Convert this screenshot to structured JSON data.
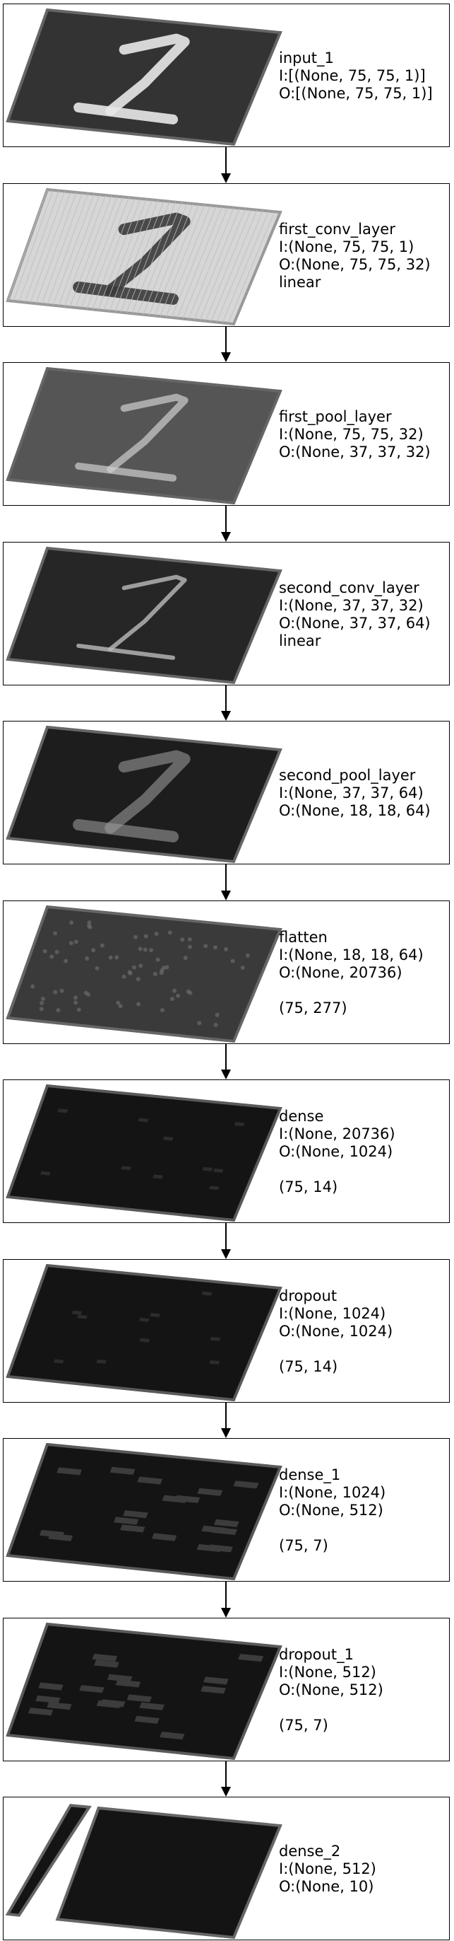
{
  "layers": [
    {
      "name": "input_1",
      "input": "I:[(None, 75, 75, 1)]",
      "output": "O:[(None, 75, 75, 1)]",
      "activation": "",
      "viz_shape": "",
      "viz": "digit-bright"
    },
    {
      "name": "first_conv_layer",
      "input": "I:(None, 75, 75, 1)",
      "output": "O:(None, 75, 75, 32)",
      "activation": "linear",
      "viz_shape": "",
      "viz": "digit-dark-on-light"
    },
    {
      "name": "first_pool_layer",
      "input": "I:(None, 75, 75, 32)",
      "output": "O:(None, 37, 37, 32)",
      "activation": "",
      "viz_shape": "",
      "viz": "digit-edges"
    },
    {
      "name": "second_conv_layer",
      "input": "I:(None, 37, 37, 32)",
      "output": "O:(None, 37, 37, 64)",
      "activation": "linear",
      "viz_shape": "",
      "viz": "digit-dark-streaks"
    },
    {
      "name": "second_pool_layer",
      "input": "I:(None, 37, 37, 64)",
      "output": "O:(None, 18, 18, 64)",
      "activation": "",
      "viz_shape": "",
      "viz": "digit-faint"
    },
    {
      "name": "flatten",
      "input": "I:(None, 18, 18, 64)",
      "output": "O:(None, 20736)",
      "activation": "",
      "viz_shape": "(75, 277)",
      "viz": "noise"
    },
    {
      "name": "dense",
      "input": "I:(None, 20736)",
      "output": "O:(None, 1024)",
      "activation": "",
      "viz_shape": "(75, 14)",
      "viz": "dark"
    },
    {
      "name": "dropout",
      "input": "I:(None, 1024)",
      "output": "O:(None, 1024)",
      "activation": "",
      "viz_shape": "(75, 14)",
      "viz": "dark"
    },
    {
      "name": "dense_1",
      "input": "I:(None, 1024)",
      "output": "O:(None, 512)",
      "activation": "",
      "viz_shape": "(75, 7)",
      "viz": "blocks"
    },
    {
      "name": "dropout_1",
      "input": "I:(None, 512)",
      "output": "O:(None, 512)",
      "activation": "",
      "viz_shape": "(75, 7)",
      "viz": "blocks"
    },
    {
      "name": "dense_2",
      "input": "I:(None, 512)",
      "output": "O:(None, 10)",
      "activation": "",
      "viz_shape": "",
      "viz": "split"
    }
  ]
}
